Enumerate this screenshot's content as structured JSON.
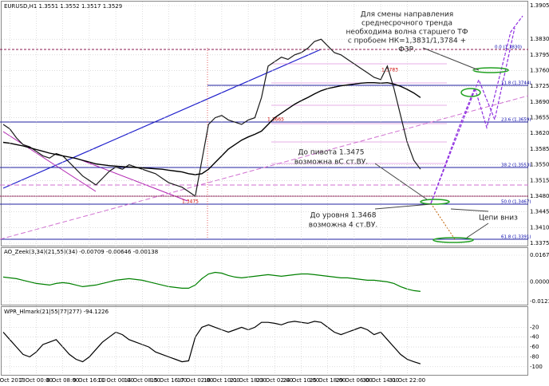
{
  "chart_data": [
    {
      "type": "line",
      "title": "EURUSD,H1 1.3551 1.3552 1.3517 1.3529",
      "categories": [
        null,
        "3 Oct 2013",
        null,
        null,
        null,
        "7 Oct 00:00",
        null,
        null,
        null,
        "8 Oct 08:00",
        null,
        null,
        null,
        "9 Oct 16:00",
        null,
        null,
        null,
        "11 Oct 00:00",
        null,
        null,
        null,
        "14 Oct 08:00",
        null,
        null,
        null,
        "15 Oct 16:00",
        null,
        null,
        null,
        "17 Oct 02:00",
        null,
        null,
        null,
        "18 Oct 10:00",
        null,
        null,
        null,
        "21 Oct 18:00",
        null,
        null,
        null,
        "23 Oct 02:00",
        null,
        null,
        null,
        "24 Oct 10:00",
        null,
        null,
        null,
        "25 Oct 18:00",
        null,
        null,
        null,
        "29 Oct 06:00",
        null,
        null,
        null,
        "30 Oct 14:00",
        null,
        null,
        null,
        "31 Oct 22:00",
        null,
        null
      ],
      "series": [
        {
          "name": "EURUSD",
          "color": "#1a1a1a",
          "values": [
            1.364,
            1.363,
            1.361,
            1.3595,
            1.359,
            1.358,
            1.357,
            1.3565,
            1.3575,
            1.357,
            1.3555,
            1.354,
            1.3525,
            1.3515,
            1.3505,
            1.352,
            1.3535,
            1.3545,
            1.354,
            1.355,
            1.3545,
            1.354,
            1.3535,
            1.353,
            1.352,
            1.351,
            1.3505,
            1.35,
            1.349,
            1.348,
            1.356,
            1.364,
            1.3655,
            1.366,
            1.365,
            1.3645,
            1.364,
            1.365,
            1.3655,
            1.37,
            1.377,
            1.378,
            1.379,
            1.3785,
            1.3795,
            1.38,
            1.381,
            1.3825,
            1.383,
            1.3815,
            1.38,
            1.3795,
            1.3785,
            1.3775,
            1.3765,
            1.3755,
            1.3745,
            1.374,
            1.377,
            1.372,
            1.366,
            1.36,
            1.356,
            1.354
          ]
        },
        {
          "name": "MA",
          "color": "#000000",
          "values": [
            1.36,
            1.3598,
            1.3595,
            1.3592,
            1.3588,
            1.3584,
            1.358,
            1.3576,
            1.3573,
            1.357,
            1.3567,
            1.3564,
            1.356,
            1.3556,
            1.3552,
            1.355,
            1.3548,
            1.3547,
            1.3546,
            1.3545,
            1.3544,
            1.3543,
            1.3542,
            1.3541,
            1.354,
            1.3538,
            1.3536,
            1.3534,
            1.353,
            1.3528,
            1.353,
            1.354,
            1.3555,
            1.357,
            1.3585,
            1.3595,
            1.3605,
            1.3612,
            1.3618,
            1.3625,
            1.364,
            1.3655,
            1.3665,
            1.3675,
            1.3685,
            1.3693,
            1.37,
            1.3708,
            1.3715,
            1.372,
            1.3723,
            1.3726,
            1.3728,
            1.373,
            1.3732,
            1.3733,
            1.3733,
            1.3732,
            1.3733,
            1.373,
            1.3725,
            1.3718,
            1.371,
            1.37
          ]
        }
      ],
      "ylim": [
        1.3375,
        1.3905
      ],
      "yticks": [
        1.3905,
        {
          "value": 1.383,
          "label": "1.3830"
        },
        1.3795,
        {
          "value": 1.376,
          "label": "1.3760"
        },
        1.3725,
        {
          "value": 1.369,
          "label": "1.3690"
        },
        1.3655,
        {
          "value": 1.362,
          "label": "1.3620"
        },
        1.3585,
        {
          "value": 1.355,
          "label": "1.3550"
        },
        1.3515,
        {
          "value": 1.348,
          "label": "1.3480"
        },
        1.3445,
        {
          "value": 1.341,
          "label": "1.3410"
        },
        1.3375
      ],
      "grid": true
    },
    {
      "type": "line",
      "title": "AO_Zeek(3,34)(21,55)(34) -0.00709 -0.00646 -0.00138",
      "series": [
        {
          "name": "AO",
          "color": "#008000",
          "values": [
            0.003,
            0.0025,
            0.002,
            0.001,
            0.0,
            -0.001,
            -0.0015,
            -0.002,
            -0.001,
            -0.0005,
            -0.001,
            -0.002,
            -0.003,
            -0.0025,
            -0.002,
            -0.001,
            0.0,
            0.001,
            0.0015,
            0.002,
            0.0015,
            0.001,
            0.0,
            -0.001,
            -0.002,
            -0.003,
            -0.0035,
            -0.004,
            -0.004,
            -0.002,
            0.002,
            0.005,
            0.006,
            0.0055,
            0.004,
            0.003,
            0.0025,
            0.003,
            0.0035,
            0.004,
            0.0045,
            0.004,
            0.0035,
            0.004,
            0.0045,
            0.005,
            0.005,
            0.0045,
            0.004,
            0.0035,
            0.003,
            0.0025,
            0.0025,
            0.002,
            0.0015,
            0.001,
            0.001,
            0.0005,
            0.0,
            -0.001,
            -0.003,
            -0.0045,
            -0.0055,
            -0.006
          ]
        }
      ],
      "ylim": [
        -0.01231,
        0.01675
      ],
      "yticks": [
        0.01675,
        {
          "value": 0,
          "label": "0.00000"
        },
        -0.01231
      ],
      "grid": true
    },
    {
      "type": "line",
      "title": "WPR_Hlmark(21|55|77|277) -94.1226",
      "series": [
        {
          "name": "WPR",
          "color": "#000000",
          "values": [
            -30,
            -45,
            -60,
            -75,
            -80,
            -70,
            -55,
            -50,
            -45,
            -60,
            -75,
            -85,
            -90,
            -80,
            -65,
            -50,
            -40,
            -30,
            -35,
            -45,
            -50,
            -55,
            -60,
            -70,
            -75,
            -80,
            -85,
            -90,
            -88,
            -40,
            -20,
            -15,
            -20,
            -25,
            -30,
            -25,
            -20,
            -25,
            -20,
            -10,
            -10,
            -12,
            -15,
            -10,
            -8,
            -10,
            -12,
            -8,
            -10,
            -20,
            -30,
            -35,
            -30,
            -25,
            -20,
            -25,
            -35,
            -30,
            -45,
            -60,
            -75,
            -85,
            -90,
            -94.1226
          ]
        }
      ],
      "ylim": [
        -110,
        0
      ],
      "yticks": [
        -20,
        -40,
        -60,
        -80,
        -100
      ],
      "grid": true
    }
  ],
  "annotations": {
    "trend_note": [
      "Для смены направления",
      "среднесрочного тренда",
      "необходима волна старшего ТФ",
      "с пробоем НК=1,3831/1,3784 +",
      "Ф3Р."
    ],
    "pivot_note": [
      "До пивота 1.3475",
      "возможна вС ст.ВУ."
    ],
    "level_note": [
      "До уровня 1.3468",
      "возможна 4 ст.ВУ."
    ],
    "chains_note": "Цепи вниз",
    "price_tags": [
      "1.3475",
      "1.3665",
      "1.3783"
    ],
    "fib_labels": [
      "0.0 (1.3830)",
      "11.8 (1.3744)",
      "23.6 (1.3659)",
      "38.2 (1.3553)",
      "50.0 (1.3467)",
      "61.8 (1.3391)"
    ]
  }
}
